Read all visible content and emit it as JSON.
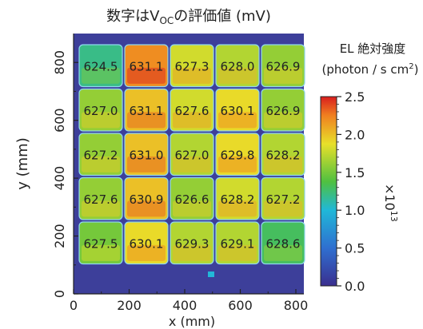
{
  "chart_data": {
    "type": "heatmap",
    "title": {
      "pre": "数字はV",
      "sub": "OC",
      "post": "の評価値 (mV)"
    },
    "xlabel": "x (mm)",
    "ylabel": "y (mm)",
    "xlim": [
      0,
      800
    ],
    "ylim": [
      0,
      900
    ],
    "xticks": [
      "0",
      "200",
      "400",
      "600",
      "800"
    ],
    "yticks": [
      "0",
      "200",
      "400",
      "600",
      "800"
    ],
    "colorbar": {
      "title1": "EL 絶対強度",
      "title2_pre": "(photon / s cm",
      "title2_sup": "2",
      "title2_post": ")",
      "ticks": [
        "0.0",
        "0.5",
        "1.0",
        "1.5",
        "2.0",
        "2.5"
      ],
      "multiplier_base": "×10",
      "multiplier_exp": "13",
      "range": [
        0,
        2.5
      ]
    },
    "grid_values": [
      [
        "624.5",
        "631.1",
        "627.3",
        "628.0",
        "626.9"
      ],
      [
        "627.0",
        "631.1",
        "627.6",
        "630.1",
        "626.9"
      ],
      [
        "627.2",
        "631.0",
        "627.0",
        "629.8",
        "628.2"
      ],
      [
        "627.6",
        "630.9",
        "626.6",
        "628.2",
        "627.2"
      ],
      [
        "627.5",
        "630.1",
        "629.3",
        "629.1",
        "628.6"
      ]
    ],
    "intensity": [
      [
        1.2,
        2.2,
        1.8,
        1.7,
        1.6
      ],
      [
        1.6,
        2.0,
        1.8,
        1.9,
        1.6
      ],
      [
        1.6,
        2.0,
        1.7,
        1.9,
        1.7
      ],
      [
        1.6,
        2.0,
        1.6,
        1.8,
        1.7
      ],
      [
        1.5,
        1.9,
        1.7,
        1.7,
        1.3
      ]
    ]
  }
}
